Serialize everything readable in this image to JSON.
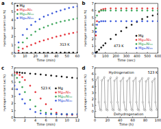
{
  "chart_data": [
    {
      "type": "scatter",
      "title": "a",
      "x_label": "Time (min)",
      "y_label": "Hydrogen content (wt.%)",
      "annotations": [
        "313 K"
      ],
      "legend": "upper left",
      "marker": "circle",
      "xlim": [
        0,
        60
      ],
      "xticks": [
        0,
        10,
        20,
        30,
        40,
        50,
        60
      ],
      "ylim": [
        0,
        6
      ],
      "yticks": [
        0,
        1,
        2,
        3,
        4,
        5,
        6
      ],
      "x": [
        0,
        4,
        8,
        12,
        16,
        20,
        24,
        28,
        32,
        36,
        40,
        44,
        48,
        52,
        56,
        60
      ],
      "series": [
        {
          "name": "Mg",
          "color": "#000000",
          "values": [
            0,
            0.02,
            0.03,
            0.04,
            0.04,
            0.05,
            0.05,
            0.05,
            0.06,
            0.06,
            0.06,
            0.07,
            0.07,
            0.07,
            0.08,
            0.08
          ]
        },
        {
          "name": "Mg₉₅Ni₅",
          "color": "#e3242b",
          "values": [
            0,
            0.3,
            0.55,
            0.8,
            1.0,
            1.2,
            1.4,
            1.55,
            1.7,
            1.85,
            2.0,
            2.1,
            2.25,
            2.35,
            2.45,
            2.55
          ]
        },
        {
          "name": "Mg₉₀Ni₁₀",
          "color": "#2e9e4f",
          "values": [
            0,
            0.7,
            1.3,
            1.8,
            2.2,
            2.6,
            2.9,
            3.1,
            3.3,
            3.5,
            3.65,
            3.8,
            3.9,
            4.0,
            4.1,
            4.2
          ]
        },
        {
          "name": "Mg₈₀Ni₂₀",
          "color": "#2a4bd7",
          "values": [
            0,
            1.3,
            2.2,
            2.9,
            3.4,
            3.8,
            4.1,
            4.4,
            4.6,
            4.8,
            5.0,
            5.15,
            5.3,
            5.45,
            5.55,
            5.65
          ]
        }
      ]
    },
    {
      "type": "scatter",
      "title": "b",
      "x_label": "Time (sec)",
      "y_label": "Hydrogen content (wt.%)",
      "annotations": [
        "473 K"
      ],
      "legend": "lower right",
      "marker": "circle",
      "xlim": [
        0,
        600
      ],
      "xticks": [
        0,
        100,
        200,
        300,
        400,
        500,
        600
      ],
      "ylim": [
        0,
        7
      ],
      "yticks": [
        0,
        1,
        2,
        3,
        4,
        5,
        6,
        7
      ],
      "x": [
        0,
        10,
        20,
        40,
        60,
        80,
        100,
        150,
        200,
        250,
        300,
        350,
        400,
        450,
        500,
        550,
        600
      ],
      "series": [
        {
          "name": "Mg",
          "color": "#000000",
          "values": [
            0,
            0.1,
            0.2,
            0.5,
            0.8,
            1.1,
            1.4,
            2.0,
            2.6,
            3.1,
            3.6,
            4.0,
            4.4,
            4.8,
            5.1,
            5.3,
            5.5
          ]
        },
        {
          "name": "Mg₉₅Ni₅",
          "color": "#e3242b",
          "values": [
            0,
            2.5,
            4.5,
            5.8,
            6.1,
            6.2,
            6.25,
            6.3,
            6.3,
            6.3,
            6.3,
            6.3,
            6.3,
            6.3,
            6.3,
            6.3,
            6.3
          ]
        },
        {
          "name": "Mg₉₀Ni₁₀",
          "color": "#2e9e4f",
          "values": [
            0,
            3.5,
            5.3,
            5.9,
            6.0,
            6.0,
            6.0,
            6.0,
            6.0,
            6.0,
            6.0,
            6.0,
            6.0,
            6.0,
            6.0,
            6.0,
            6.0
          ]
        },
        {
          "name": "Mg₈₀Ni₂₀",
          "color": "#2a4bd7",
          "values": [
            0,
            3.0,
            4.0,
            4.4,
            4.5,
            4.5,
            4.5,
            4.5,
            4.5,
            4.5,
            4.5,
            4.5,
            4.5,
            4.5,
            4.5,
            4.5,
            4.5
          ]
        }
      ]
    },
    {
      "type": "scatter",
      "title": "c",
      "x_label": "Time (min)",
      "y_label": "Hydrogen content (wt.%)",
      "annotations": [
        "523 K"
      ],
      "legend": "right",
      "marker": "circle",
      "xlim": [
        0,
        12
      ],
      "xticks": [
        0,
        2,
        4,
        6,
        8,
        10,
        12
      ],
      "ylim": [
        0,
        7
      ],
      "yticks": [
        0,
        1,
        2,
        3,
        4,
        5,
        6,
        7
      ],
      "x": [
        0,
        0.5,
        1,
        1.5,
        2,
        3,
        4,
        5,
        6,
        7,
        8,
        9,
        10,
        11,
        12
      ],
      "series": [
        {
          "name": "Mg",
          "color": "#000000",
          "values": [
            6.4,
            6.38,
            6.35,
            6.3,
            6.28,
            6.2,
            6.15,
            6.08,
            6.0,
            5.93,
            5.85,
            5.78,
            5.7,
            5.62,
            5.55
          ]
        },
        {
          "name": "Mg₉₅Ni₅",
          "color": "#e3242b",
          "values": [
            6.3,
            6.2,
            6.0,
            5.7,
            5.3,
            4.5,
            3.6,
            2.7,
            1.9,
            1.2,
            0.7,
            0.5,
            0.4,
            0.4,
            0.4
          ]
        },
        {
          "name": "Mg₉₀Ni₁₀",
          "color": "#2e9e4f",
          "values": [
            6.0,
            5.6,
            5.0,
            4.3,
            3.6,
            2.5,
            1.6,
            1.0,
            0.7,
            0.6,
            0.5,
            0.5,
            0.5,
            0.5,
            0.5
          ]
        },
        {
          "name": "Mg₈₀Ni₂₀",
          "color": "#2a4bd7",
          "values": [
            4.5,
            4.0,
            3.3,
            2.6,
            2.0,
            1.2,
            0.8,
            0.6,
            0.5,
            0.5,
            0.5,
            0.5,
            0.5,
            0.5,
            0.5
          ]
        }
      ]
    },
    {
      "type": "line",
      "title": "d",
      "x_label": "Time (h)",
      "y_label": "Hydrogen content (wt.%)",
      "annotations": [
        "Hydrogenation",
        "Dehydrogenation",
        "523 K"
      ],
      "marker": "circle",
      "xlim": [
        0,
        100
      ],
      "xticks": [
        0,
        20,
        40,
        60,
        80,
        100
      ],
      "ylim": [
        -1,
        7
      ],
      "yticks": [
        0,
        1,
        2,
        3,
        4,
        5,
        6,
        7
      ],
      "x": [
        0,
        1,
        5,
        6,
        8,
        10,
        11,
        15,
        16,
        18,
        20,
        21,
        25,
        26,
        28,
        30,
        31,
        35,
        36,
        38,
        40,
        41,
        45,
        46,
        48,
        50,
        51,
        55,
        56,
        58,
        60,
        61,
        65,
        66,
        68,
        70,
        71,
        75,
        76,
        78,
        80,
        81,
        85,
        86,
        88,
        90,
        91,
        95,
        96,
        98
      ],
      "series": [
        {
          "name": "Mg₉₅Ni₅",
          "color": "#555555",
          "line_style": "solid",
          "values": [
            0.2,
            5.0,
            5.5,
            1.5,
            0.3,
            0.2,
            5.0,
            5.5,
            1.5,
            0.3,
            0.2,
            4.95,
            5.45,
            1.5,
            0.3,
            0.2,
            4.95,
            5.45,
            1.5,
            0.3,
            0.2,
            4.9,
            5.4,
            1.5,
            0.3,
            0.2,
            4.9,
            5.4,
            1.5,
            0.3,
            0.2,
            4.9,
            5.4,
            1.5,
            0.3,
            0.2,
            4.85,
            5.35,
            1.5,
            0.3,
            0.2,
            4.85,
            5.35,
            1.5,
            0.3,
            0.2,
            4.8,
            5.3,
            1.5,
            0.3
          ]
        }
      ]
    }
  ]
}
